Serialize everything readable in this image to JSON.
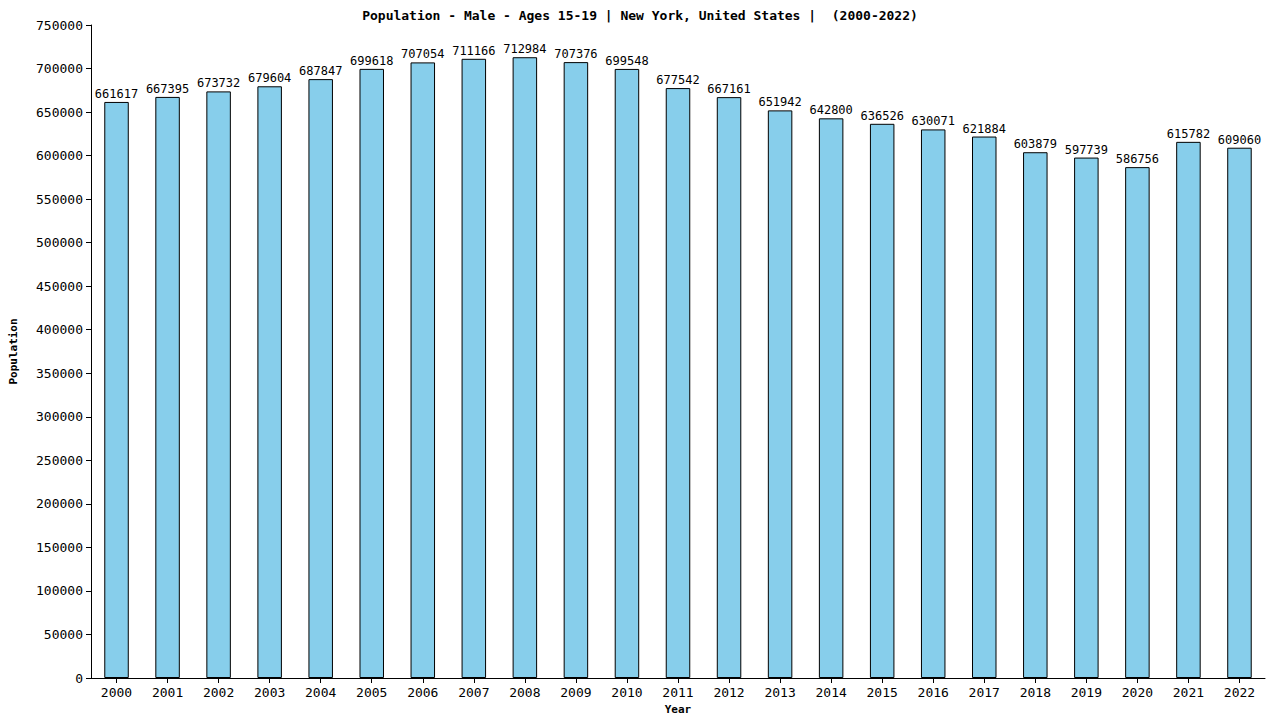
{
  "chart_data": {
    "type": "bar",
    "title": "Population - Male - Ages 15-19 | New York, United States |  (2000-2022)",
    "x_label": "Year",
    "y_label": "Population",
    "categories": [
      "2000",
      "2001",
      "2002",
      "2003",
      "2004",
      "2005",
      "2006",
      "2007",
      "2008",
      "2009",
      "2010",
      "2011",
      "2012",
      "2013",
      "2014",
      "2015",
      "2016",
      "2017",
      "2018",
      "2019",
      "2020",
      "2021",
      "2022"
    ],
    "values": [
      661617,
      667395,
      673732,
      679604,
      687847,
      699618,
      707054,
      711166,
      712984,
      707376,
      699548,
      677542,
      667161,
      651942,
      642800,
      636526,
      630071,
      621884,
      603879,
      597739,
      586756,
      615782,
      609060
    ],
    "color": "#87ceeb",
    "ylim": [
      0,
      750000
    ],
    "yticks": [
      0,
      50000,
      100000,
      150000,
      200000,
      250000,
      300000,
      350000,
      400000,
      450000,
      500000,
      550000,
      600000,
      650000,
      700000,
      750000
    ],
    "grid": false,
    "data_labels": true
  }
}
